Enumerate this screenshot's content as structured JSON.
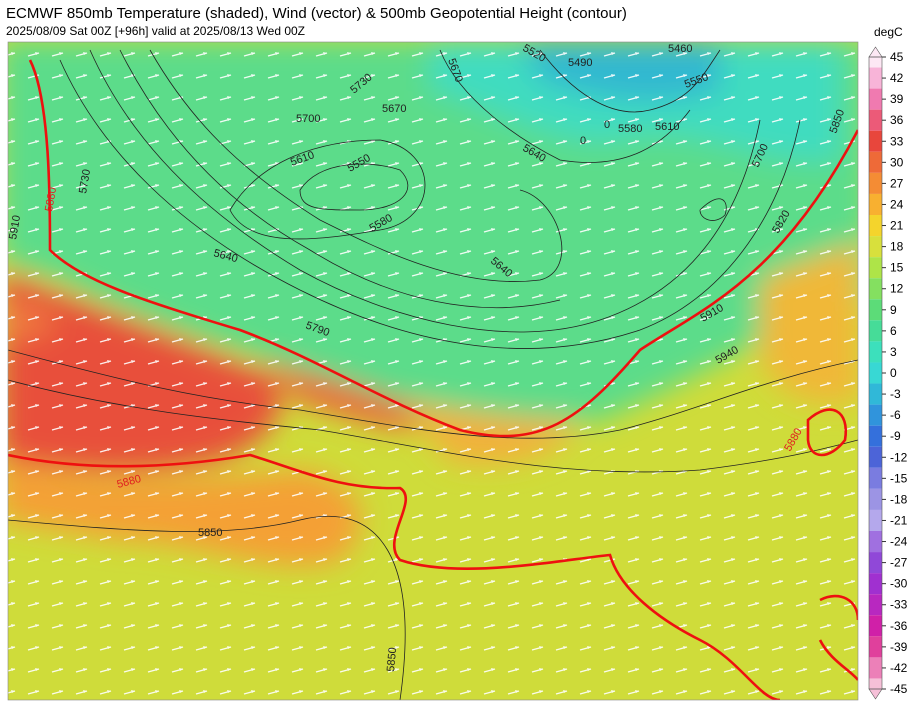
{
  "header": {
    "title": "ECMWF 850mb Temperature (shaded), Wind (vector) & 500mb Geopotential Height (contour)",
    "subtitle": "2025/08/09 Sat 00Z [+96h] valid at 2025/08/13 Wed 00Z"
  },
  "colorbar": {
    "unit": "degC",
    "ticks": [
      45,
      42,
      39,
      36,
      33,
      30,
      27,
      24,
      21,
      18,
      15,
      12,
      9,
      6,
      3,
      0,
      -3,
      -6,
      -9,
      -12,
      -15,
      -18,
      -21,
      -24,
      -27,
      -30,
      -33,
      -36,
      -39,
      -42,
      -45
    ],
    "colors": [
      "#fde8f4",
      "#f8b4d8",
      "#f07ab0",
      "#ec5a78",
      "#e8463c",
      "#ee6a38",
      "#f48c34",
      "#f8b030",
      "#f4d42c",
      "#d8e03c",
      "#aee448",
      "#84e060",
      "#5cdc78",
      "#46dc98",
      "#3ce0bc",
      "#38d8d4",
      "#30b8d8",
      "#3094dc",
      "#3470dc",
      "#4c64d8",
      "#7a7ce0",
      "#9c94e4",
      "#b4a8ec",
      "#a070e0",
      "#9048d8",
      "#a030d0",
      "#b828c0",
      "#d020a8",
      "#e0409c",
      "#ec80b8",
      "#f6c0d8"
    ]
  },
  "contour_labels": [
    5670,
    5520,
    5490,
    5460,
    5550,
    5580,
    5610,
    5640,
    5700,
    5850,
    5820,
    5910,
    5940,
    5880,
    5730,
    5670,
    5700,
    5610,
    5550,
    5580,
    5640,
    5640,
    5790,
    5730,
    5880,
    5910,
    5880,
    5850,
    5850,
    0,
    0
  ]
}
